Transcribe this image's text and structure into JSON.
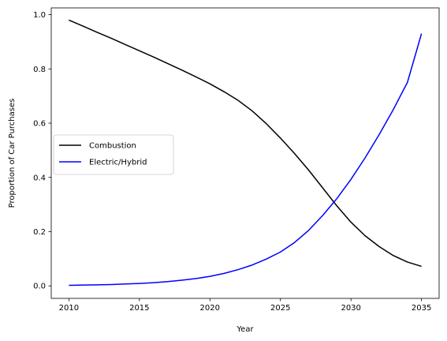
{
  "chart_data": {
    "type": "line",
    "xlabel": "Year",
    "ylabel": "Proportion of Car Purchases",
    "xlim": [
      2008.75,
      2036.25
    ],
    "ylim": [
      -0.046,
      1.025
    ],
    "xticks": [
      2010,
      2015,
      2020,
      2025,
      2030,
      2035
    ],
    "yticks": [
      0.0,
      0.2,
      0.4,
      0.6,
      0.8,
      1.0
    ],
    "ytick_labels": [
      "0.0",
      "0.2",
      "0.4",
      "0.6",
      "0.8",
      "1.0"
    ],
    "grid": false,
    "legend_position": "center-left",
    "x": [
      2010,
      2011,
      2012,
      2013,
      2014,
      2015,
      2016,
      2017,
      2018,
      2019,
      2020,
      2021,
      2022,
      2023,
      2024,
      2025,
      2026,
      2027,
      2028,
      2029,
      2030,
      2031,
      2032,
      2033,
      2034,
      2035
    ],
    "series": [
      {
        "name": "Combustion",
        "color": "#000000",
        "values": [
          0.98,
          0.958,
          0.935,
          0.913,
          0.89,
          0.867,
          0.844,
          0.82,
          0.796,
          0.771,
          0.745,
          0.716,
          0.684,
          0.645,
          0.598,
          0.545,
          0.488,
          0.427,
          0.361,
          0.295,
          0.235,
          0.185,
          0.145,
          0.112,
          0.088,
          0.072
        ]
      },
      {
        "name": "Electric/Hybrid",
        "color": "#0000ff",
        "values": [
          0.002,
          0.003,
          0.004,
          0.005,
          0.007,
          0.009,
          0.012,
          0.016,
          0.021,
          0.027,
          0.035,
          0.046,
          0.06,
          0.077,
          0.099,
          0.125,
          0.16,
          0.205,
          0.26,
          0.322,
          0.393,
          0.472,
          0.558,
          0.65,
          0.75,
          0.93
        ]
      }
    ]
  }
}
